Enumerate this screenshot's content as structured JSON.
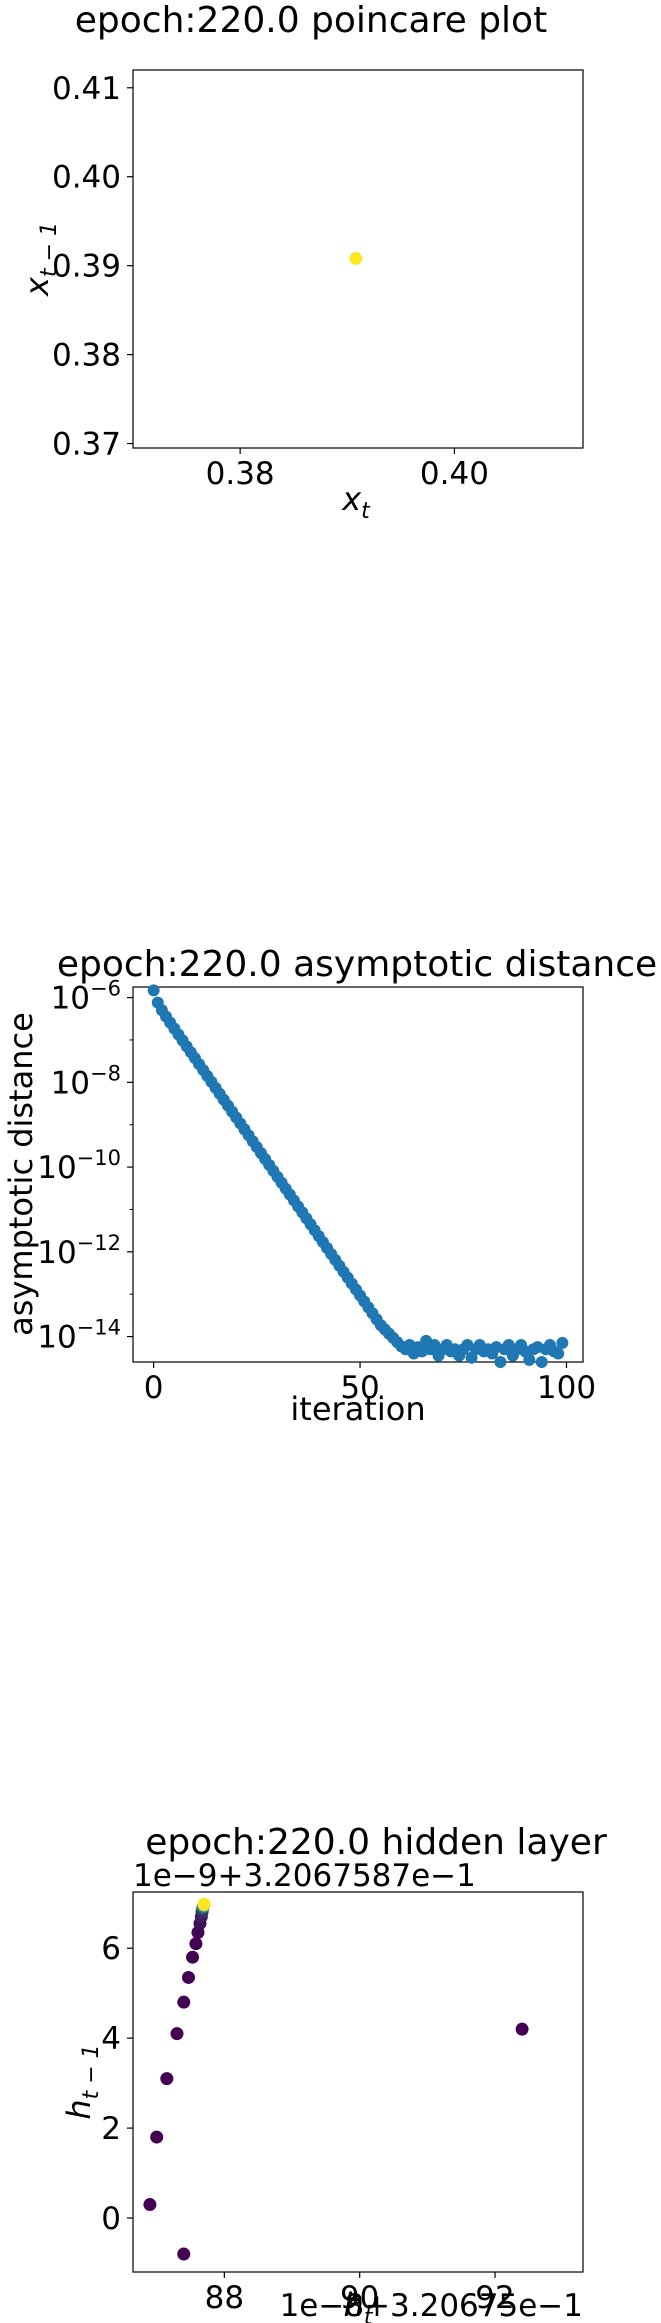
{
  "chart_data": [
    {
      "type": "scatter",
      "title": "epoch:220.0 poincare plot",
      "xlabel": "x_t",
      "ylabel": "x_{t-1}",
      "xlim": [
        0.37,
        0.412
      ],
      "ylim": [
        0.3695,
        0.412
      ],
      "xticks": [
        0.38,
        0.4
      ],
      "xtick_labels": [
        "0.38",
        "0.40"
      ],
      "yticks": [
        0.37,
        0.38,
        0.39,
        0.4,
        0.41
      ],
      "ytick_labels": [
        "0.37",
        "0.38",
        "0.39",
        "0.40",
        "0.41"
      ],
      "points": [
        {
          "x": 0.3908,
          "y": 0.3908
        }
      ],
      "point_color": "#fde725",
      "grid": false
    },
    {
      "type": "scatter",
      "title": "epoch:220.0 asymptotic distance",
      "xlabel": "iteration",
      "ylabel": "asymptotic distance",
      "yscale": "log",
      "xlim": [
        -5,
        104
      ],
      "ylim_log10": [
        -14.6,
        -5.75
      ],
      "xticks": [
        0,
        50,
        100
      ],
      "xtick_labels": [
        "0",
        "50",
        "100"
      ],
      "yticks_log10": [
        -6,
        -8,
        -10,
        -12,
        -14
      ],
      "ytick_labels": [
        {
          "base": "10",
          "exp": "−6"
        },
        {
          "base": "10",
          "exp": "−8"
        },
        {
          "base": "10",
          "exp": "−10"
        },
        {
          "base": "10",
          "exp": "−12"
        },
        {
          "base": "10",
          "exp": "−14"
        }
      ],
      "x": [
        0,
        1,
        2,
        3,
        4,
        5,
        6,
        7,
        8,
        9,
        10,
        11,
        12,
        13,
        14,
        15,
        16,
        17,
        18,
        19,
        20,
        21,
        22,
        23,
        24,
        25,
        26,
        27,
        28,
        29,
        30,
        31,
        32,
        33,
        34,
        35,
        36,
        37,
        38,
        39,
        40,
        41,
        42,
        43,
        44,
        45,
        46,
        47,
        48,
        49,
        50,
        51,
        52,
        53,
        54,
        55,
        56,
        57,
        58,
        59,
        60,
        61,
        62,
        63,
        64,
        65,
        66,
        67,
        68,
        69,
        70,
        71,
        72,
        73,
        74,
        75,
        76,
        77,
        78,
        79,
        80,
        81,
        82,
        83,
        84,
        85,
        86,
        87,
        88,
        89,
        90,
        91,
        92,
        93,
        94,
        95,
        96,
        97,
        98,
        99
      ],
      "y_log10": [
        -5.83,
        -6.12,
        -6.3,
        -6.45,
        -6.59,
        -6.73,
        -6.87,
        -7.01,
        -7.15,
        -7.29,
        -7.43,
        -7.57,
        -7.71,
        -7.85,
        -7.99,
        -8.13,
        -8.27,
        -8.41,
        -8.55,
        -8.69,
        -8.83,
        -8.97,
        -9.11,
        -9.25,
        -9.39,
        -9.53,
        -9.67,
        -9.81,
        -9.95,
        -10.09,
        -10.23,
        -10.37,
        -10.51,
        -10.65,
        -10.79,
        -10.93,
        -11.07,
        -11.21,
        -11.35,
        -11.49,
        -11.63,
        -11.77,
        -11.91,
        -12.05,
        -12.19,
        -12.33,
        -12.47,
        -12.61,
        -12.75,
        -12.89,
        -13.03,
        -13.17,
        -13.31,
        -13.45,
        -13.59,
        -13.73,
        -13.83,
        -13.93,
        -14.03,
        -14.13,
        -14.23,
        -14.3,
        -14.2,
        -14.4,
        -14.25,
        -14.35,
        -14.1,
        -14.3,
        -14.2,
        -14.45,
        -14.3,
        -14.2,
        -14.35,
        -14.3,
        -14.45,
        -14.3,
        -14.2,
        -14.5,
        -14.3,
        -14.2,
        -14.35,
        -14.3,
        -14.4,
        -14.25,
        -14.6,
        -14.3,
        -14.2,
        -14.45,
        -14.3,
        -14.2,
        -14.35,
        -14.55,
        -14.3,
        -14.25,
        -14.6,
        -14.3,
        -14.2,
        -14.35,
        -14.4,
        -14.15
      ],
      "point_color": "#1f77b4",
      "grid": false
    },
    {
      "type": "scatter",
      "title": "epoch:220.0 hidden layer",
      "xlabel": "h_t",
      "ylabel": "h_{t-1}",
      "x_offset_text": "1e−8+3.20675e−1",
      "y_offset_text": "1e−9+3.2067587e−1",
      "xlim": [
        86.65,
        93.3
      ],
      "ylim": [
        -1.2,
        7.25
      ],
      "xticks": [
        88,
        90,
        92
      ],
      "xtick_labels": [
        "88",
        "90",
        "92"
      ],
      "yticks": [
        0,
        2,
        4,
        6
      ],
      "ytick_labels": [
        "0",
        "2",
        "4",
        "6"
      ],
      "points": [
        {
          "x": 92.4,
          "y": 4.2,
          "c": 0.0
        },
        {
          "x": 87.4,
          "y": -0.8,
          "c": 0.0
        },
        {
          "x": 86.9,
          "y": 0.3,
          "c": 0.0
        },
        {
          "x": 87.0,
          "y": 1.8,
          "c": 0.0
        },
        {
          "x": 87.15,
          "y": 3.1,
          "c": 0.0
        },
        {
          "x": 87.3,
          "y": 4.1,
          "c": 0.0
        },
        {
          "x": 87.4,
          "y": 4.8,
          "c": 0.0
        },
        {
          "x": 87.47,
          "y": 5.35,
          "c": 0.0
        },
        {
          "x": 87.53,
          "y": 5.8,
          "c": 0.0
        },
        {
          "x": 87.58,
          "y": 6.1,
          "c": 0.0
        },
        {
          "x": 87.61,
          "y": 6.35,
          "c": 0.02
        },
        {
          "x": 87.64,
          "y": 6.55,
          "c": 0.05
        },
        {
          "x": 87.66,
          "y": 6.7,
          "c": 0.1
        },
        {
          "x": 87.67,
          "y": 6.8,
          "c": 0.15
        },
        {
          "x": 87.68,
          "y": 6.88,
          "c": 0.25
        },
        {
          "x": 87.69,
          "y": 6.93,
          "c": 0.5
        },
        {
          "x": 87.7,
          "y": 6.96,
          "c": 0.8
        },
        {
          "x": 87.7,
          "y": 6.98,
          "c": 1.0
        }
      ],
      "colormap_low": "#440154",
      "colormap_mid": "#21918c",
      "colormap_high": "#fde725",
      "grid": false
    }
  ]
}
